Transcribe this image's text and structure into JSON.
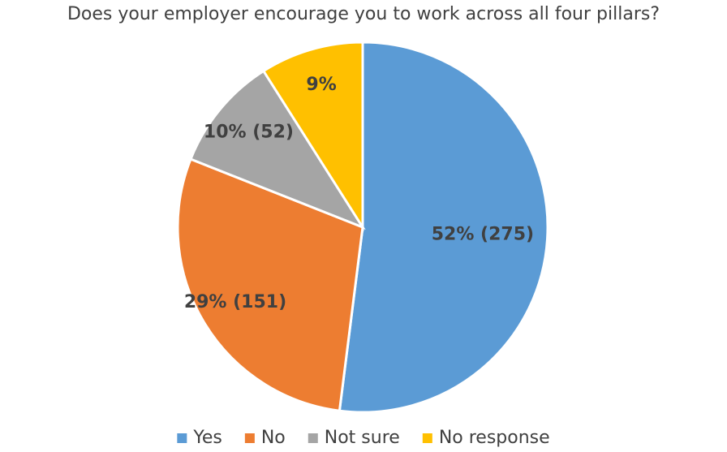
{
  "chart_data": {
    "type": "pie",
    "title": "Does your employer encourage you to work across all four pillars?",
    "categories": [
      "Yes",
      "No",
      "Not sure",
      "No response"
    ],
    "values": [
      52,
      29,
      10,
      9
    ],
    "value_labels": [
      "52% (275)",
      "29% (151)",
      "10% (52)",
      "9%"
    ],
    "colors": [
      "#5b9bd5",
      "#ed7d31",
      "#a5a5a5",
      "#ffc000"
    ],
    "legend": "bottom"
  }
}
